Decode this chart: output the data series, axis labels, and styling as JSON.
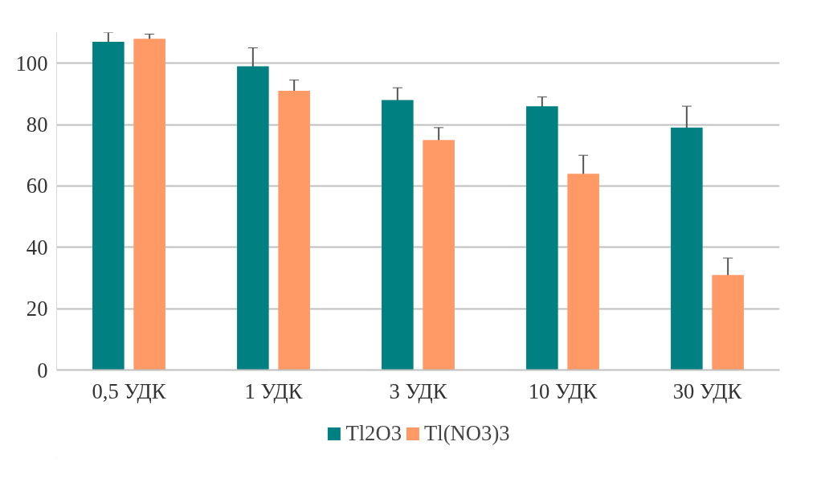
{
  "chart_data": {
    "type": "bar",
    "categories": [
      "0,5 УДК",
      "1 УДК",
      "3 УДК",
      "10 УДК",
      "30 УДК"
    ],
    "series": [
      {
        "name": "Tl2O3",
        "color": "#008080",
        "values": [
          107,
          99,
          88,
          86,
          79
        ],
        "errors": [
          3,
          6,
          4,
          3,
          7
        ]
      },
      {
        "name": "Tl(NO3)3",
        "color": "#ff9966",
        "values": [
          108,
          91,
          75,
          64,
          31
        ],
        "errors": [
          1.5,
          3.5,
          4,
          6,
          5.5
        ]
      }
    ],
    "ylim": [
      0,
      110
    ],
    "yticks": [
      0,
      20,
      40,
      60,
      80,
      100
    ],
    "grid": "y",
    "legend": "bottom"
  }
}
